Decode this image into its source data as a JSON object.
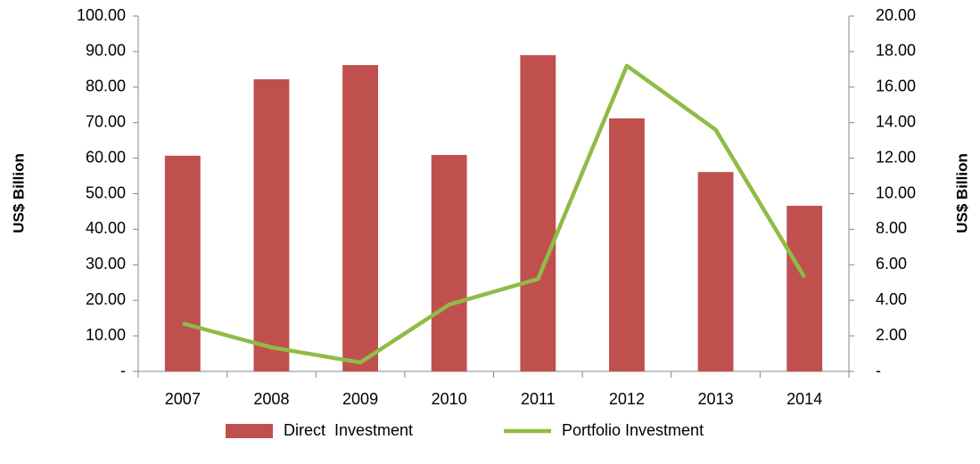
{
  "chart_data": {
    "type": "bar-line",
    "categories": [
      "2007",
      "2008",
      "2009",
      "2010",
      "2011",
      "2012",
      "2013",
      "2014"
    ],
    "series": [
      {
        "name": "Direct  Investment",
        "type": "bar",
        "color": "#c0504d",
        "values": [
          60.7,
          82.2,
          86.2,
          60.9,
          89.0,
          71.2,
          56.1,
          46.6
        ]
      },
      {
        "name": "Portfolio Investment",
        "type": "line",
        "axis": "y2",
        "color": "#8fbc45",
        "values": [
          2.7,
          1.35,
          0.5,
          3.76,
          5.2,
          17.2,
          13.6,
          5.3
        ]
      }
    ],
    "ylabel": "US$ Billion",
    "y2label": "US$ Billion",
    "ylim": [
      0,
      100
    ],
    "yticks": [
      {
        "value": 0,
        "label": "-"
      },
      {
        "value": 10,
        "label": "10.00"
      },
      {
        "value": 20,
        "label": "20.00"
      },
      {
        "value": 30,
        "label": "30.00"
      },
      {
        "value": 40,
        "label": "40.00"
      },
      {
        "value": 50,
        "label": "50.00"
      },
      {
        "value": 60,
        "label": "60.00"
      },
      {
        "value": 70,
        "label": "70.00"
      },
      {
        "value": 80,
        "label": "80.00"
      },
      {
        "value": 90,
        "label": "90.00"
      },
      {
        "value": 100,
        "label": "100.00"
      }
    ],
    "y2lim": [
      0,
      20
    ],
    "y2ticks": [
      {
        "value": 0,
        "label": "-"
      },
      {
        "value": 2,
        "label": "2.00"
      },
      {
        "value": 4,
        "label": "4.00"
      },
      {
        "value": 6,
        "label": "6.00"
      },
      {
        "value": 8,
        "label": "8.00"
      },
      {
        "value": 10,
        "label": "10.00"
      },
      {
        "value": 12,
        "label": "12.00"
      },
      {
        "value": 14,
        "label": "14.00"
      },
      {
        "value": 16,
        "label": "16.00"
      },
      {
        "value": 18,
        "label": "18.00"
      },
      {
        "value": 20,
        "label": "20.00"
      }
    ],
    "legend": "bottom",
    "grid": false
  }
}
